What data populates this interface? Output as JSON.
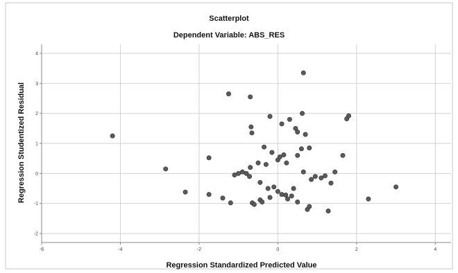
{
  "chart_data": {
    "type": "scatter",
    "title": "Scatterplot",
    "subtitle": "Dependent Variable: ABS_RES",
    "xlabel": "Regression Standardized Predicted Value",
    "ylabel": "Regression Studentized Residual",
    "xlim": [
      -6,
      4.4
    ],
    "ylim": [
      -2.3,
      4.3
    ],
    "xticks": [
      -6,
      -4,
      -2,
      0,
      2,
      4
    ],
    "yticks": [
      -2,
      -1,
      0,
      1,
      2,
      3,
      4
    ],
    "grid": true,
    "colors": {
      "point": "#5a5a5a",
      "grid": "#d2d2d2",
      "axis": "#888888",
      "outer_frame": "#c8c8c8"
    },
    "points": [
      {
        "x": -4.2,
        "y": 1.25
      },
      {
        "x": -2.85,
        "y": 0.15
      },
      {
        "x": -2.35,
        "y": -0.62
      },
      {
        "x": -1.75,
        "y": 0.52
      },
      {
        "x": -1.75,
        "y": -0.7
      },
      {
        "x": -1.4,
        "y": -0.82
      },
      {
        "x": -1.25,
        "y": 2.65
      },
      {
        "x": -1.2,
        "y": -0.98
      },
      {
        "x": -1.1,
        "y": -0.05
      },
      {
        "x": -1.0,
        "y": 0.0
      },
      {
        "x": -0.9,
        "y": 0.05
      },
      {
        "x": -0.8,
        "y": 0.0
      },
      {
        "x": -0.72,
        "y": -0.1
      },
      {
        "x": -0.7,
        "y": 0.2
      },
      {
        "x": -0.7,
        "y": 2.55
      },
      {
        "x": -0.68,
        "y": 1.55
      },
      {
        "x": -0.66,
        "y": 1.35
      },
      {
        "x": -0.65,
        "y": -0.98
      },
      {
        "x": -0.6,
        "y": -1.03
      },
      {
        "x": -0.5,
        "y": 0.35
      },
      {
        "x": -0.45,
        "y": -0.3
      },
      {
        "x": -0.45,
        "y": -0.88
      },
      {
        "x": -0.4,
        "y": -0.95
      },
      {
        "x": -0.35,
        "y": 0.88
      },
      {
        "x": -0.3,
        "y": 0.3
      },
      {
        "x": -0.25,
        "y": -0.5
      },
      {
        "x": -0.2,
        "y": 1.9
      },
      {
        "x": -0.2,
        "y": -0.8
      },
      {
        "x": -0.15,
        "y": 0.7
      },
      {
        "x": -0.1,
        "y": -0.45
      },
      {
        "x": 0.0,
        "y": 0.45
      },
      {
        "x": 0.0,
        "y": -0.6
      },
      {
        "x": 0.05,
        "y": 0.55
      },
      {
        "x": 0.1,
        "y": 1.65
      },
      {
        "x": 0.1,
        "y": -0.7
      },
      {
        "x": 0.15,
        "y": 0.62
      },
      {
        "x": 0.2,
        "y": -0.72
      },
      {
        "x": 0.22,
        "y": 0.35
      },
      {
        "x": 0.25,
        "y": -0.85
      },
      {
        "x": 0.3,
        "y": 1.8
      },
      {
        "x": 0.35,
        "y": -0.75
      },
      {
        "x": 0.4,
        "y": -0.5
      },
      {
        "x": 0.45,
        "y": 1.5
      },
      {
        "x": 0.5,
        "y": 1.38
      },
      {
        "x": 0.5,
        "y": 0.6
      },
      {
        "x": 0.5,
        "y": -0.95
      },
      {
        "x": 0.6,
        "y": 0.82
      },
      {
        "x": 0.62,
        "y": 2.0
      },
      {
        "x": 0.65,
        "y": 3.35
      },
      {
        "x": 0.65,
        "y": 0.05
      },
      {
        "x": 0.7,
        "y": 1.3
      },
      {
        "x": 0.75,
        "y": -1.2
      },
      {
        "x": 0.8,
        "y": 0.85
      },
      {
        "x": 0.8,
        "y": -1.1
      },
      {
        "x": 0.85,
        "y": -0.2
      },
      {
        "x": 0.95,
        "y": -0.1
      },
      {
        "x": 1.1,
        "y": -0.15
      },
      {
        "x": 1.2,
        "y": -0.08
      },
      {
        "x": 1.28,
        "y": -1.25
      },
      {
        "x": 1.35,
        "y": -0.32
      },
      {
        "x": 1.45,
        "y": 0.05
      },
      {
        "x": 1.65,
        "y": 0.6
      },
      {
        "x": 1.75,
        "y": 1.82
      },
      {
        "x": 1.8,
        "y": 1.92
      },
      {
        "x": 2.3,
        "y": -0.85
      },
      {
        "x": 3.0,
        "y": -0.45
      }
    ]
  }
}
